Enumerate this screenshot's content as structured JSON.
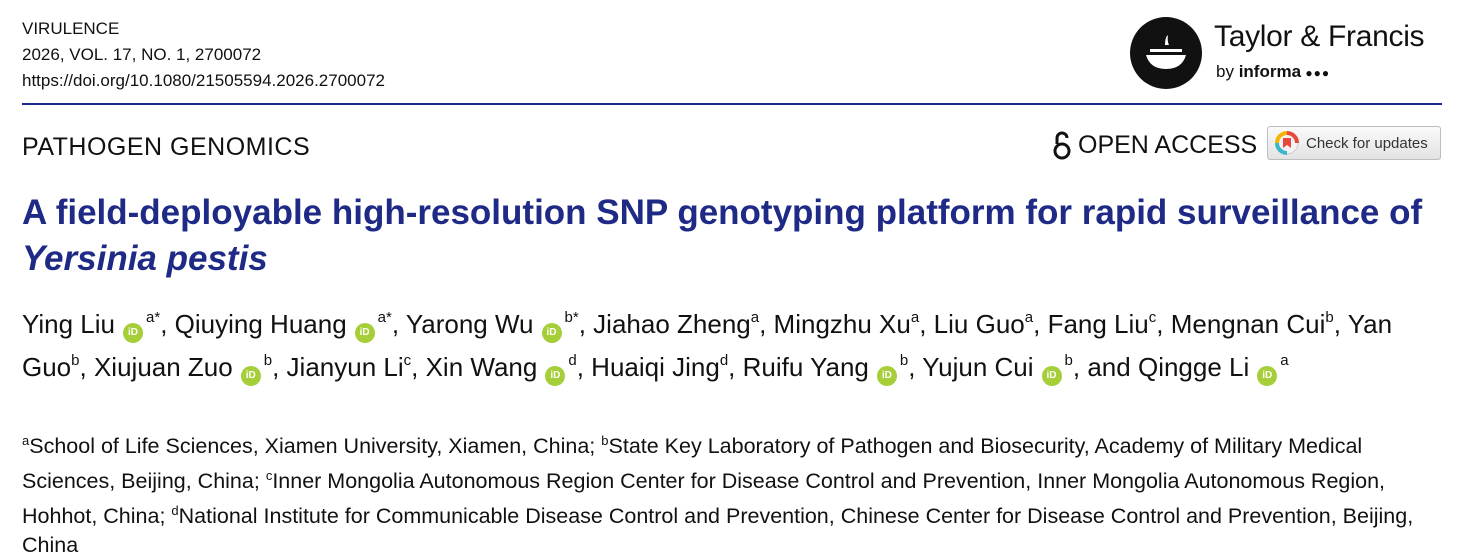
{
  "header": {
    "journal": "VIRULENCE",
    "issue": "2026, VOL. 17, NO. 1, 2700072",
    "doi": "https://doi.org/10.1080/21505594.2026.2700072"
  },
  "publisher": {
    "name": "Taylor & Francis",
    "by": "by",
    "brand": "informa"
  },
  "section": "PATHOGEN GENOMICS",
  "open_access": "OPEN ACCESS",
  "check_updates": "Check for updates",
  "title": {
    "text": "A field-deployable high-resolution SNP genotyping platform for rapid surveillance of ",
    "species": "Yersinia pestis"
  },
  "author_separator": ",",
  "author_conjunction": "and",
  "authors": [
    {
      "name": "Ying Liu",
      "orcid": true,
      "affil": "a*"
    },
    {
      "name": "Qiuying Huang",
      "orcid": true,
      "affil": "a*"
    },
    {
      "name": "Yarong Wu",
      "orcid": true,
      "affil": "b*"
    },
    {
      "name": "Jiahao Zheng",
      "orcid": false,
      "affil": "a"
    },
    {
      "name": "Mingzhu Xu",
      "orcid": false,
      "affil": "a"
    },
    {
      "name": "Liu Guo",
      "orcid": false,
      "affil": "a"
    },
    {
      "name": "Fang Liu",
      "orcid": false,
      "affil": "c"
    },
    {
      "name": "Mengnan Cui",
      "orcid": false,
      "affil": "b"
    },
    {
      "name": "Yan Guo",
      "orcid": false,
      "affil": "b"
    },
    {
      "name": "Xiujuan Zuo",
      "orcid": true,
      "affil": "b"
    },
    {
      "name": "Jianyun Li",
      "orcid": false,
      "affil": "c"
    },
    {
      "name": "Xin Wang",
      "orcid": true,
      "affil": "d"
    },
    {
      "name": "Huaiqi Jing",
      "orcid": false,
      "affil": "d"
    },
    {
      "name": "Ruifu Yang",
      "orcid": true,
      "affil": "b"
    },
    {
      "name": "Yujun Cui",
      "orcid": true,
      "affil": "b"
    },
    {
      "name": "Qingge Li",
      "orcid": true,
      "affil": "a"
    }
  ],
  "affiliation_separator": ";",
  "affiliations": [
    {
      "label": "a",
      "text": "School of Life Sciences, Xiamen University, Xiamen, China"
    },
    {
      "label": "b",
      "text": "State Key Laboratory of Pathogen and Biosecurity, Academy of Military Medical Sciences, Beijing, China"
    },
    {
      "label": "c",
      "text": "Inner Mongolia Autonomous Region Center for Disease Control and Prevention, Inner Mongolia Autonomous Region, Hohhot, China"
    },
    {
      "label": "d",
      "text": "National Institute for Communicable Disease Control and Prevention, Chinese Center for Disease Control and Prevention, Beijing, China"
    }
  ]
}
